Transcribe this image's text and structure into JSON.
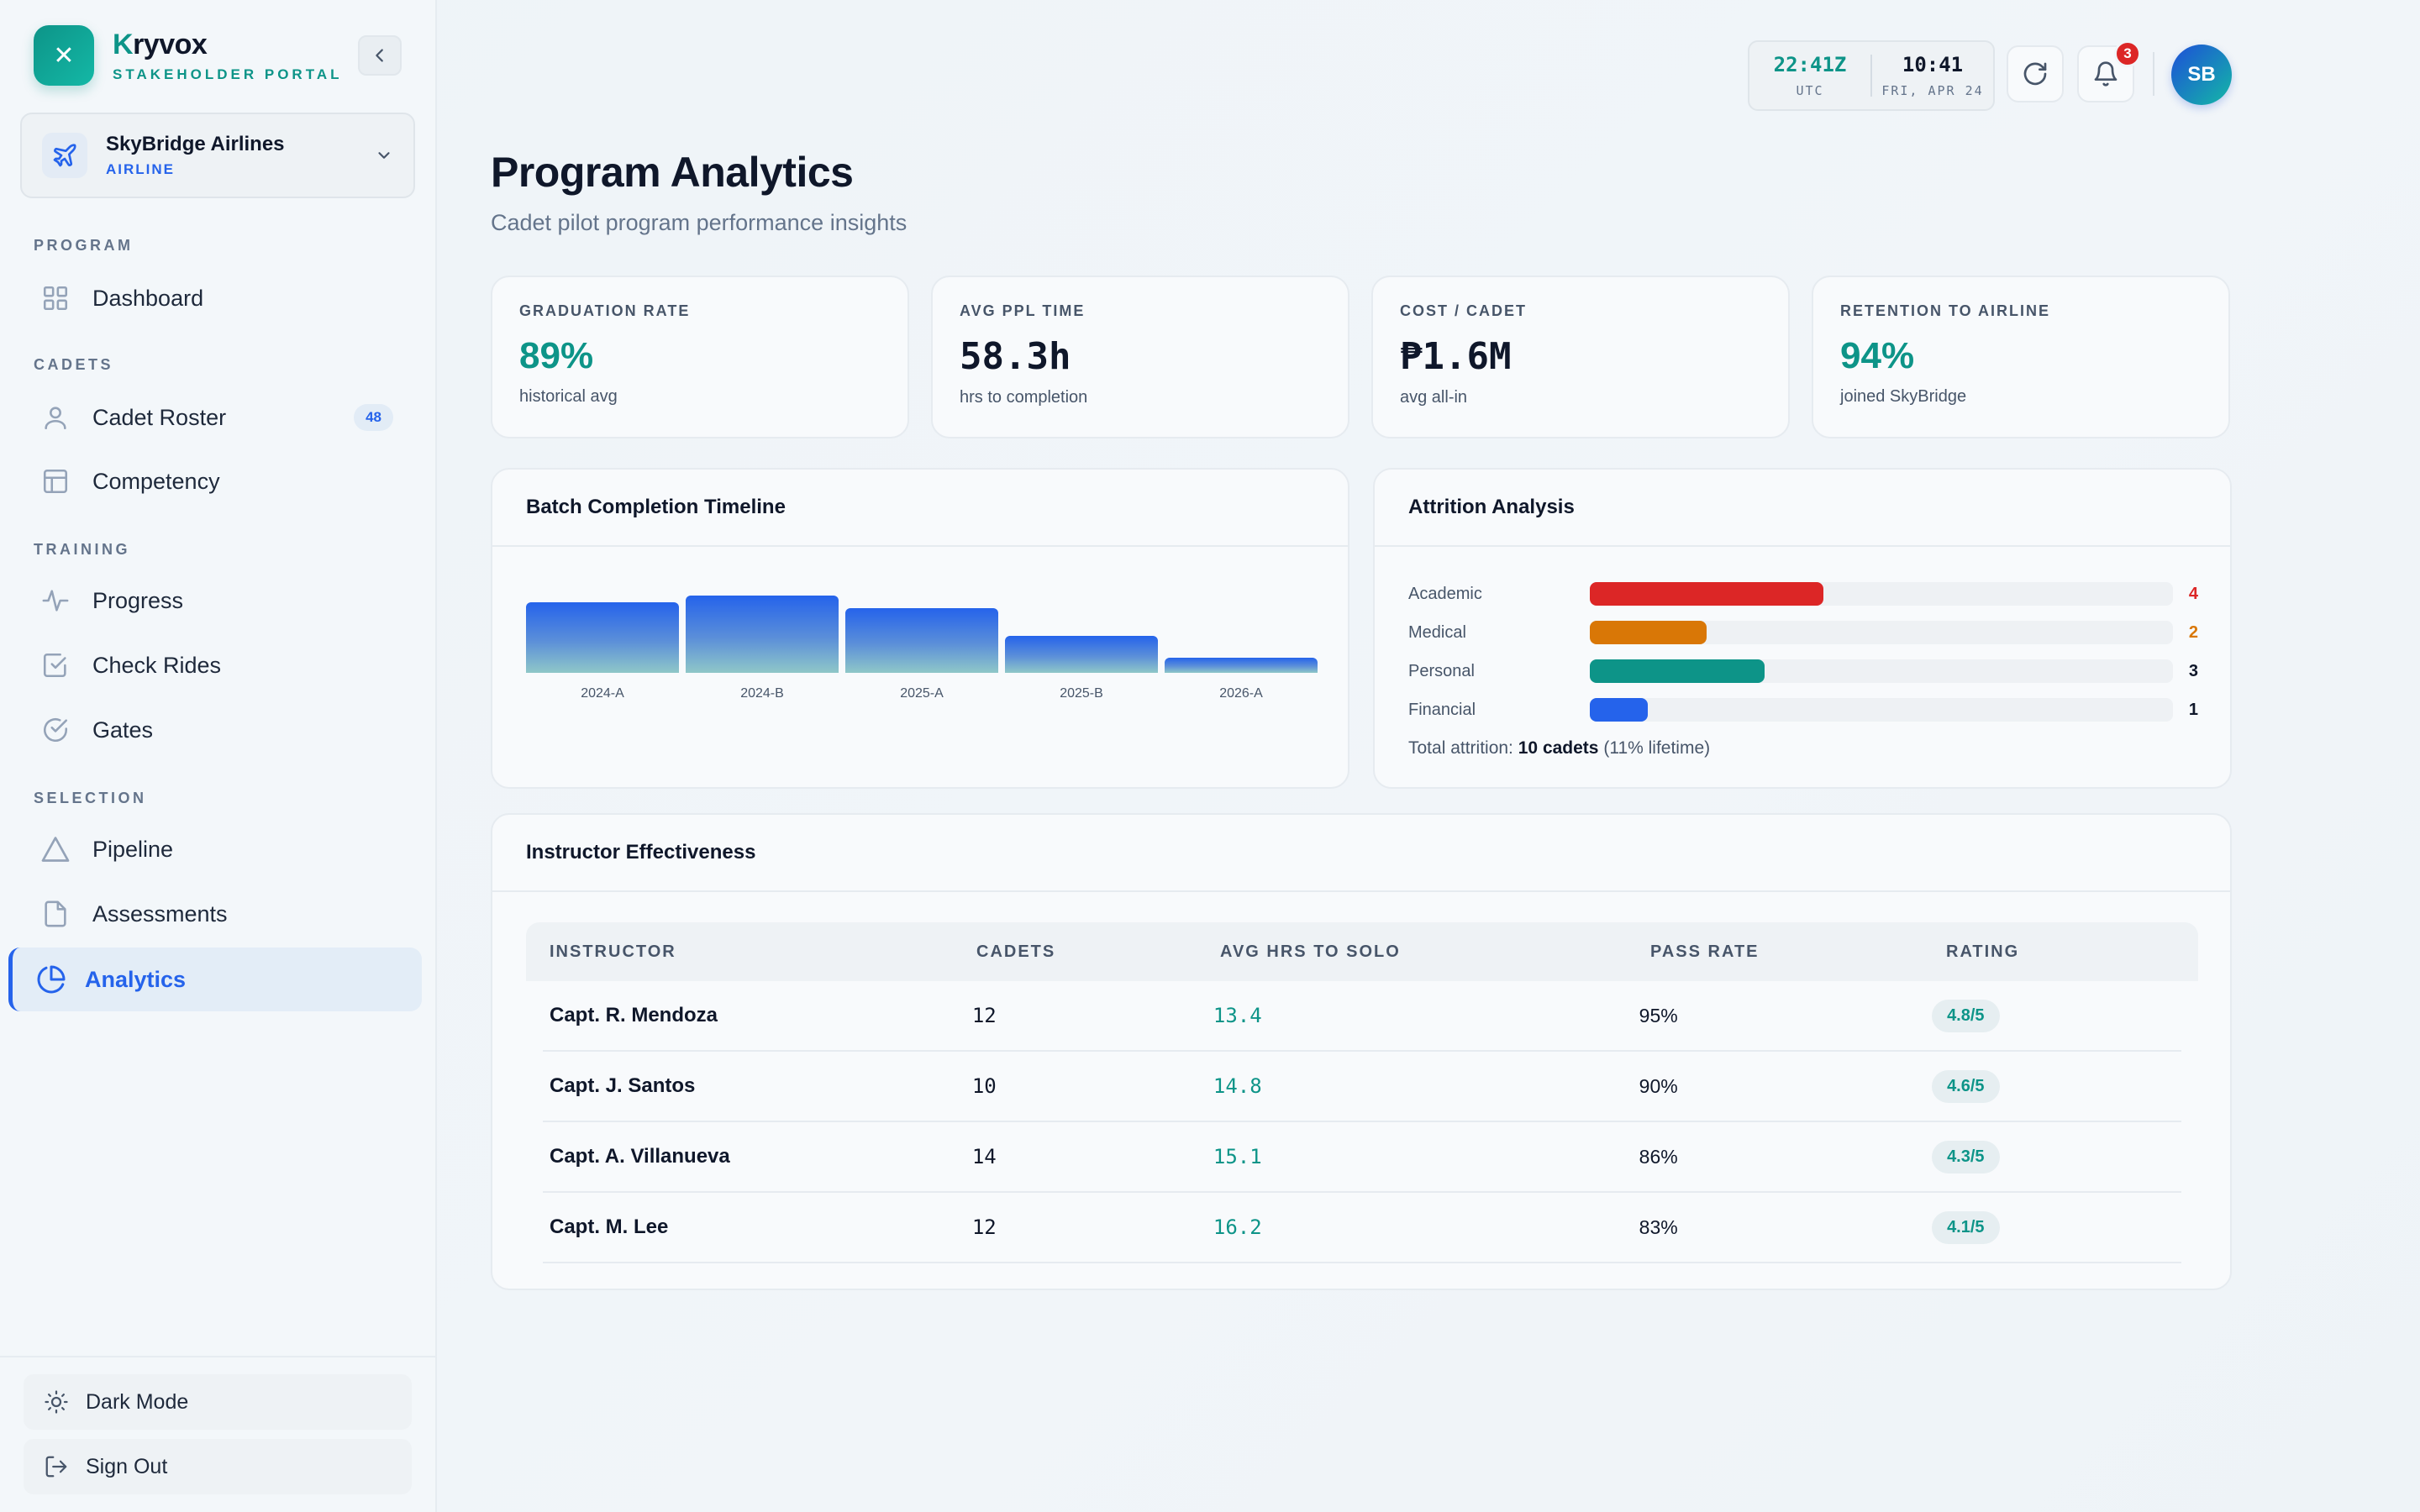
{
  "brand": {
    "name_initial": "K",
    "name_rest": "ryvox",
    "subtitle": "STAKEHOLDER PORTAL",
    "logo_glyph": "✕"
  },
  "org": {
    "name": "SkyBridge Airlines",
    "type": "AIRLINE"
  },
  "nav": {
    "program_label": "PROGRAM",
    "cadets_label": "CADETS",
    "training_label": "TRAINING",
    "selection_label": "SELECTION",
    "dashboard": "Dashboard",
    "roster": "Cadet Roster",
    "roster_count": "48",
    "competency": "Competency",
    "progress": "Progress",
    "check_rides": "Check Rides",
    "gates": "Gates",
    "pipeline": "Pipeline",
    "assessments": "Assessments",
    "analytics": "Analytics"
  },
  "footer": {
    "dark_mode": "Dark Mode",
    "sign_out": "Sign Out"
  },
  "topbar": {
    "utc_time": "22:41Z",
    "utc_label": "UTC",
    "local_time": "10:41",
    "local_date": "FRI, APR 24",
    "notifications": "3",
    "avatar": "SB"
  },
  "page": {
    "title": "Program Analytics",
    "subtitle": "Cadet pilot program performance insights"
  },
  "kpis": [
    {
      "label": "GRADUATION RATE",
      "value": "89%",
      "sub": "historical avg"
    },
    {
      "label": "AVG PPL TIME",
      "value": "58.3h",
      "sub": "hrs to completion"
    },
    {
      "label": "COST / CADET",
      "value": "₱1.6M",
      "sub": "avg all-in"
    },
    {
      "label": "RETENTION TO AIRLINE",
      "value": "94%",
      "sub": "joined SkyBridge"
    }
  ],
  "timeline": {
    "title": "Batch Completion Timeline",
    "chart_data": {
      "type": "bar",
      "categories": [
        "2024-A",
        "2024-B",
        "2025-A",
        "2025-B",
        "2026-A"
      ],
      "values": [
        76,
        84,
        70,
        40,
        16
      ],
      "ylim": [
        0,
        100
      ]
    }
  },
  "attrition": {
    "title": "Attrition Analysis",
    "rows": [
      {
        "name": "Academic",
        "count": "4",
        "color": "#dc2626"
      },
      {
        "name": "Medical",
        "count": "2",
        "color": "#d97706"
      },
      {
        "name": "Personal",
        "count": "3",
        "color": "#0d9488"
      },
      {
        "name": "Financial",
        "count": "1",
        "color": "#2563eb"
      }
    ],
    "total_prefix": "Total attrition:",
    "total_value": "10 cadets",
    "total_suffix": "(11% lifetime)"
  },
  "instructors": {
    "title": "Instructor Effectiveness",
    "headers": [
      "INSTRUCTOR",
      "CADETS",
      "AVG HRS TO SOLO",
      "PASS RATE",
      "RATING"
    ],
    "rows": [
      {
        "name": "Capt. R. Mendoza",
        "cadets": "12",
        "avg_hrs": "13.4",
        "pass": "95%",
        "rating": "4.8/5"
      },
      {
        "name": "Capt. J. Santos",
        "cadets": "10",
        "avg_hrs": "14.8",
        "pass": "90%",
        "rating": "4.6/5"
      },
      {
        "name": "Capt. A. Villanueva",
        "cadets": "14",
        "avg_hrs": "15.1",
        "pass": "86%",
        "rating": "4.3/5"
      },
      {
        "name": "Capt. M. Lee",
        "cadets": "12",
        "avg_hrs": "16.2",
        "pass": "83%",
        "rating": "4.1/5"
      }
    ]
  }
}
